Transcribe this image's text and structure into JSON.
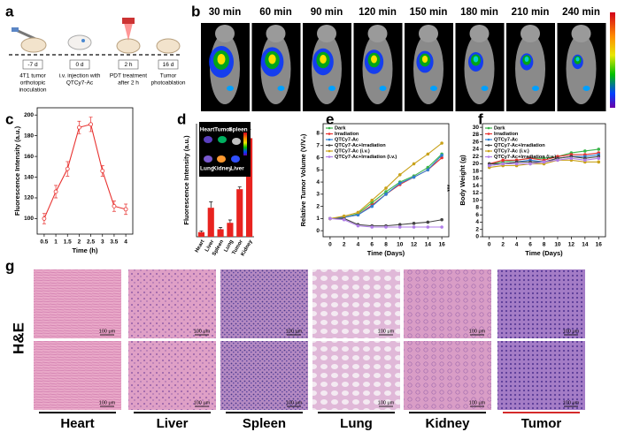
{
  "schematic": {
    "panel": "a",
    "steps": [
      {
        "time": "-7 d",
        "text": [
          "4T1 tumor",
          "orthotopic",
          "inoculation"
        ]
      },
      {
        "time": "0 d",
        "text": [
          "i.v. injection with",
          "QTCy7-Ac"
        ]
      },
      {
        "time": "2 h",
        "text": [
          "PDT treatment",
          "after 2 h"
        ]
      },
      {
        "time": "16 d",
        "text": [
          "Tumor",
          "photoablation"
        ]
      }
    ]
  },
  "imaging": {
    "panel": "b",
    "times": [
      "30 min",
      "60 min",
      "90 min",
      "120 min",
      "150 min",
      "180 min",
      "210 min",
      "240 min"
    ]
  },
  "chart_data": [
    {
      "type": "line",
      "panel": "c",
      "x_label": "Time (h)",
      "y_label": "Fluorescence Intensity (a.u.)",
      "x": [
        0.5,
        1,
        1.5,
        2,
        2.5,
        3,
        3.5,
        4
      ],
      "values": [
        100,
        126,
        148,
        188,
        191,
        146,
        112,
        109
      ],
      "errors": [
        5,
        6,
        7,
        6,
        7,
        5,
        5,
        5
      ],
      "color": "#e8312f",
      "xlim": [
        0.2,
        4.3
      ],
      "xticks": [
        0.5,
        1,
        1.5,
        2,
        2.5,
        3,
        3.5,
        4
      ],
      "ylim": [
        85,
        207
      ],
      "yticks": [
        100,
        120,
        140,
        160,
        180,
        200
      ]
    },
    {
      "type": "bar",
      "panel": "d",
      "y_label": "Fluorescence Intensity (a.u.)",
      "categories": [
        "Heart",
        "Liver",
        "Spleen",
        "Lung",
        "Tumor",
        "Kidney"
      ],
      "values": [
        8,
        50,
        13,
        24,
        82,
        170
      ],
      "errors": [
        2,
        10,
        3,
        5,
        4,
        15
      ],
      "color": "#e8231f",
      "ylim": [
        0,
        195
      ],
      "inset_labels": [
        "Heart",
        "Tumor",
        "Spleen",
        "Lung",
        "Kidney",
        "Liver"
      ]
    },
    {
      "type": "line",
      "panel": "e",
      "x_label": "Time (Days)",
      "y_label": "Relative Tumor Volume (V/V₀)",
      "annotation": "***",
      "x": [
        0,
        2,
        4,
        6,
        8,
        10,
        12,
        14,
        16
      ],
      "xlim": [
        -1,
        17
      ],
      "xticks": [
        0,
        2,
        4,
        6,
        8,
        10,
        12,
        14,
        16
      ],
      "ylim": [
        -0.5,
        8.8
      ],
      "yticks": [
        0,
        1,
        2,
        3,
        4,
        5,
        6,
        7,
        8
      ],
      "series": [
        {
          "name": "Dark",
          "color": "#3bb54a",
          "values": [
            1,
            1.1,
            1.4,
            2.3,
            3.2,
            4,
            4.5,
            5.2,
            6.3
          ]
        },
        {
          "name": "Irradiation",
          "color": "#e8312f",
          "values": [
            1,
            1.1,
            1.3,
            2.1,
            3,
            3.8,
            4.4,
            5,
            6
          ]
        },
        {
          "name": "QTCy7-Ac",
          "color": "#2d7fd3",
          "values": [
            1,
            1.1,
            1.3,
            2,
            3,
            3.9,
            4.4,
            5,
            6.2
          ]
        },
        {
          "name": "QTCy7-Ac+Irradiation",
          "color": "#444444",
          "values": [
            1,
            1,
            0.5,
            0.4,
            0.4,
            0.5,
            0.6,
            0.7,
            0.9
          ]
        },
        {
          "name": "QTCy7-Ac (i.v.)",
          "color": "#c9a21a",
          "values": [
            1,
            1.2,
            1.5,
            2.5,
            3.5,
            4.6,
            5.5,
            6.3,
            7.2
          ]
        },
        {
          "name": "QTCy7-Ac+Irradiation (i.v.)",
          "color": "#b07ee8",
          "values": [
            1,
            0.9,
            0.4,
            0.3,
            0.3,
            0.3,
            0.3,
            0.3,
            0.3
          ]
        }
      ]
    },
    {
      "type": "line",
      "panel": "f",
      "x_label": "Time (Days)",
      "y_label": "Body Weight (g)",
      "x": [
        0,
        2,
        4,
        6,
        8,
        10,
        12,
        14,
        16
      ],
      "xlim": [
        -1,
        17
      ],
      "xticks": [
        0,
        2,
        4,
        6,
        8,
        10,
        12,
        14,
        16
      ],
      "ylim": [
        0,
        31
      ],
      "yticks": [
        0,
        2,
        4,
        6,
        8,
        10,
        12,
        14,
        16,
        18,
        20,
        22,
        24,
        26,
        28,
        30
      ],
      "series": [
        {
          "name": "Dark",
          "color": "#3bb54a",
          "values": [
            20,
            20.5,
            21,
            21.5,
            21.5,
            22,
            23,
            23.5,
            24
          ]
        },
        {
          "name": "Irradiation",
          "color": "#e8312f",
          "values": [
            20,
            21,
            21,
            21.5,
            21,
            22,
            22.5,
            22.5,
            23
          ]
        },
        {
          "name": "QTCy7-Ac",
          "color": "#2d7fd3",
          "values": [
            19.5,
            20,
            20.5,
            21,
            20.5,
            21.5,
            22,
            22,
            22.5
          ]
        },
        {
          "name": "QTCy7-Ac+Irradiation",
          "color": "#444444",
          "values": [
            20,
            20,
            20.5,
            20.5,
            20.5,
            21.5,
            22,
            21.5,
            22
          ]
        },
        {
          "name": "QTCy7-Ac (i.v.)",
          "color": "#c9a21a",
          "values": [
            19,
            19.5,
            19.5,
            20,
            20,
            21,
            21,
            20.5,
            20.5
          ]
        },
        {
          "name": "QTCy7-Ac+Irradiation (i.v.)",
          "color": "#b07ee8",
          "values": [
            19.5,
            20,
            20,
            20,
            20.5,
            21,
            21.5,
            21,
            21.5
          ]
        }
      ]
    }
  ],
  "histology": {
    "panel": "g",
    "stain": "H&E",
    "scale_bar": "100 μm",
    "organs": [
      "Heart",
      "Liver",
      "Spleen",
      "Lung",
      "Kidney",
      "Tumor"
    ]
  }
}
